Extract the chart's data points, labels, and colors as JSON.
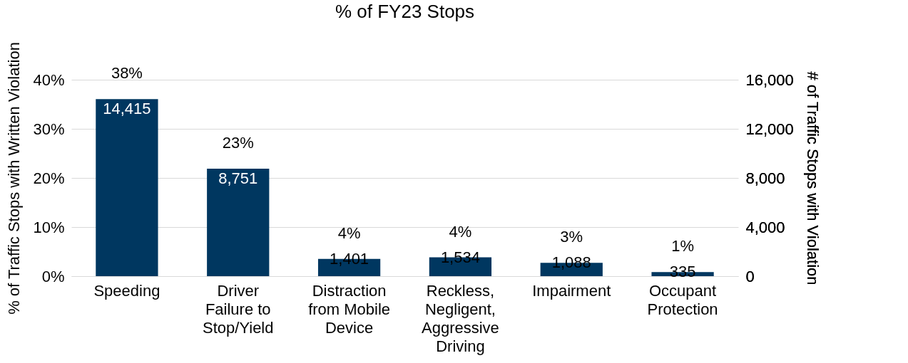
{
  "chart_data": {
    "type": "bar",
    "title": "% of FY23 Stops",
    "categories": [
      "Speeding",
      "Driver Failure to Stop/Yield",
      "Distraction from Mobile Device",
      "Reckless, Negligent, Aggressive Driving",
      "Impairment",
      "Occupant Protection"
    ],
    "ylabel": "% of Traffic Stops with Written Violation",
    "y2label": "# of Traffic Stops with Violation",
    "ylim": [
      0,
      40
    ],
    "yticks": [
      {
        "value": 0,
        "label": "0%"
      },
      {
        "value": 10,
        "label": "10%"
      },
      {
        "value": 20,
        "label": "20%"
      },
      {
        "value": 30,
        "label": "30%"
      },
      {
        "value": 40,
        "label": "40%"
      }
    ],
    "y2lim": [
      0,
      16000
    ],
    "y2ticks": [
      0,
      {
        "value": 4000,
        "label": "4,000"
      },
      {
        "value": 8000,
        "label": "8,000"
      },
      {
        "value": 12000,
        "label": "12,000"
      },
      {
        "value": 16000,
        "label": "16,000"
      }
    ],
    "grid": "y",
    "annotations": [
      "38%",
      "23%",
      "4%",
      "4%",
      "3%",
      "1%"
    ],
    "series": [
      {
        "axis": "y2",
        "color": "#003760",
        "values": [
          14415,
          8751,
          1401,
          1534,
          1088,
          335
        ],
        "value_labels": [
          "14,415",
          "8,751",
          "1,401",
          "1,534",
          "1,088",
          "335"
        ]
      }
    ]
  }
}
